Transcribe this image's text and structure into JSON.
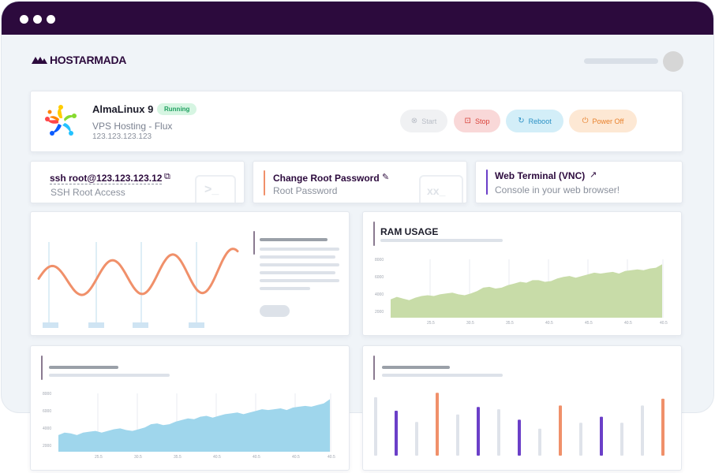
{
  "brand": {
    "name_part1": "HOST",
    "name_part2": "ARMADA"
  },
  "server": {
    "name": "AlmaLinux 9",
    "status": "Running",
    "plan": "VPS Hosting - Flux",
    "ip": "123.123.123.123",
    "colors": {
      "status_bg": "#d6f5e2",
      "status_text": "#20a060"
    }
  },
  "actions": {
    "start": "Start",
    "stop": "Stop",
    "reboot": "Reboot",
    "power_off": "Power Off"
  },
  "quick": {
    "ssh": {
      "title": "ssh root@123.123.123.12",
      "sub": "SSH Root Access",
      "watermark": ">_"
    },
    "password": {
      "title": "Change Root Password",
      "sub": "Root Password",
      "watermark": "xx_"
    },
    "terminal": {
      "title": "Web Terminal (VNC)",
      "sub": "Console in your web browser!"
    }
  },
  "ram": {
    "title": "RAM USAGE"
  },
  "chart_data": [
    {
      "type": "area",
      "title": "RAM USAGE",
      "color": "#c8dca8",
      "yticks": [
        "8000",
        "6000",
        "4000",
        "2000"
      ],
      "ylim": [
        1000,
        8000
      ],
      "xticks": [
        "25.5",
        "30.5",
        "35.5",
        "40.5",
        "45.5",
        "40.5",
        "40.5"
      ],
      "values": [
        3200,
        3500,
        3300,
        3100,
        3400,
        3600,
        3700,
        3600,
        3800,
        3900,
        4000,
        3800,
        3700,
        3900,
        4200,
        4600,
        4700,
        4500,
        4600,
        4900,
        5100,
        5300,
        5200,
        5500,
        5500,
        5300,
        5400,
        5700,
        5900,
        6000,
        5800,
        6000,
        6200,
        6400,
        6300,
        6400,
        6500,
        6300,
        6600,
        6700,
        6800,
        6700,
        6900,
        7000,
        7400
      ]
    },
    {
      "type": "area",
      "color": "#9fd6ec",
      "yticks": [
        "8000",
        "6000",
        "4000",
        "2000"
      ],
      "ylim": [
        1000,
        8000
      ],
      "xticks": [
        "25.5",
        "30.5",
        "35.5",
        "40.5",
        "40.5",
        "40.5",
        "40.5"
      ],
      "values": [
        3000,
        3300,
        3200,
        3000,
        3300,
        3400,
        3500,
        3300,
        3500,
        3700,
        3800,
        3600,
        3500,
        3700,
        3900,
        4300,
        4400,
        4200,
        4300,
        4600,
        4800,
        5000,
        4900,
        5200,
        5300,
        5100,
        5300,
        5500,
        5600,
        5700,
        5500,
        5700,
        5900,
        6100,
        6000,
        6100,
        6200,
        6000,
        6300,
        6400,
        6500,
        6400,
        6600,
        6800,
        7300
      ]
    },
    {
      "type": "bar",
      "colors": {
        "gray": "#dfe3ea",
        "purple": "#6b3fc8",
        "orange": "#f0906a"
      },
      "bars": [
        {
          "value": 78,
          "color": "gray"
        },
        {
          "value": 60,
          "color": "purple"
        },
        {
          "value": 45,
          "color": "gray"
        },
        {
          "value": 84,
          "color": "orange"
        },
        {
          "value": 55,
          "color": "gray"
        },
        {
          "value": 65,
          "color": "purple"
        },
        {
          "value": 62,
          "color": "gray"
        },
        {
          "value": 48,
          "color": "purple"
        },
        {
          "value": 36,
          "color": "gray"
        },
        {
          "value": 67,
          "color": "orange"
        },
        {
          "value": 44,
          "color": "gray"
        },
        {
          "value": 52,
          "color": "purple"
        },
        {
          "value": 44,
          "color": "gray"
        },
        {
          "value": 67,
          "color": "gray"
        },
        {
          "value": 76,
          "color": "orange"
        }
      ]
    },
    {
      "type": "line",
      "color": "#f0906a"
    }
  ]
}
